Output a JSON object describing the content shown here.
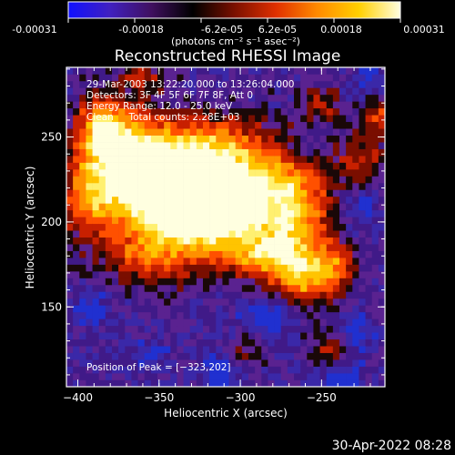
{
  "colorbar": {
    "ticks": [
      "-0.00031",
      "-0.00018",
      "-6.2e-05",
      "6.2e-05",
      "0.00018",
      "0.00031"
    ],
    "unit_label": "(photons cm⁻² s⁻¹ asec⁻²)",
    "colors": [
      "#1010ff",
      "#4020c0",
      "#401060",
      "#000000",
      "#7a1000",
      "#e03000",
      "#ff8a00",
      "#ffd000",
      "#ffffe0"
    ]
  },
  "chart_data": {
    "type": "heatmap",
    "title": "Reconstructed RHESSI Image",
    "xlabel": "Heliocentric X (arcsec)",
    "ylabel": "Heliocentric Y (arcsec)",
    "xlim": [
      -407,
      -211
    ],
    "ylim": [
      103,
      291
    ],
    "x_ticks": [
      -400,
      -350,
      -300,
      -250
    ],
    "y_ticks": [
      150,
      200,
      250
    ],
    "x_tick_labels": [
      "−400",
      "−350",
      "−300",
      "−250"
    ],
    "y_tick_labels": [
      "150",
      "200",
      "250"
    ],
    "peak": [
      -323,
      202
    ],
    "annotations": [
      "29-Mar-2003 13:22:20.000 to 13:26:04.000",
      "Detectors: 3F 4F 5F 6F 7F 8F, Att 0",
      "Energy Range: 12.0 - 25.0 keV",
      "Clean     Total counts: 2.28E+03"
    ],
    "peak_label": "Position of Peak = [−323,202]",
    "sources": [
      {
        "x": -323,
        "y": 205,
        "amp": 1.0,
        "sx": 22,
        "sy": 14
      },
      {
        "x": -340,
        "y": 225,
        "amp": 0.78,
        "sx": 28,
        "sy": 18
      },
      {
        "x": -370,
        "y": 232,
        "amp": 0.8,
        "sx": 20,
        "sy": 22
      },
      {
        "x": -385,
        "y": 255,
        "amp": 0.62,
        "sx": 10,
        "sy": 12
      },
      {
        "x": -300,
        "y": 218,
        "amp": 0.6,
        "sx": 25,
        "sy": 18
      },
      {
        "x": -268,
        "y": 208,
        "amp": 0.58,
        "sx": 15,
        "sy": 24
      },
      {
        "x": -282,
        "y": 180,
        "amp": 0.62,
        "sx": 20,
        "sy": 10
      },
      {
        "x": -258,
        "y": 167,
        "amp": 0.55,
        "sx": 12,
        "sy": 10
      },
      {
        "x": -355,
        "y": 180,
        "amp": 0.45,
        "sx": 20,
        "sy": 12
      },
      {
        "x": -395,
        "y": 212,
        "amp": 0.35,
        "sx": 10,
        "sy": 15
      },
      {
        "x": -318,
        "y": 245,
        "amp": 0.4,
        "sx": 22,
        "sy": 12
      },
      {
        "x": -225,
        "y": 235,
        "amp": 0.35,
        "sx": 10,
        "sy": 12
      },
      {
        "x": -215,
        "y": 263,
        "amp": 0.4,
        "sx": 6,
        "sy": 7
      },
      {
        "x": -250,
        "y": 270,
        "amp": 0.3,
        "sx": 8,
        "sy": 8
      },
      {
        "x": -360,
        "y": 285,
        "amp": 0.3,
        "sx": 10,
        "sy": 6
      },
      {
        "x": -295,
        "y": 125,
        "amp": 0.2,
        "sx": 8,
        "sy": 8
      },
      {
        "x": -245,
        "y": 125,
        "amp": 0.28,
        "sx": 8,
        "sy": 8
      },
      {
        "x": -240,
        "y": 175,
        "amp": 0.35,
        "sx": 8,
        "sy": 10
      }
    ],
    "negatives": [
      {
        "x": -285,
        "y": 145,
        "amp": 0.3,
        "sx": 10,
        "sy": 8
      },
      {
        "x": -312,
        "y": 110,
        "amp": 0.25,
        "sx": 8,
        "sy": 8
      },
      {
        "x": -238,
        "y": 110,
        "amp": 0.3,
        "sx": 8,
        "sy": 6
      },
      {
        "x": -228,
        "y": 135,
        "amp": 0.25,
        "sx": 7,
        "sy": 8
      },
      {
        "x": -390,
        "y": 150,
        "amp": 0.2,
        "sx": 8,
        "sy": 8
      },
      {
        "x": -225,
        "y": 210,
        "amp": 0.22,
        "sx": 7,
        "sy": 8
      },
      {
        "x": -262,
        "y": 240,
        "amp": 0.22,
        "sx": 7,
        "sy": 8
      },
      {
        "x": -356,
        "y": 120,
        "amp": 0.18,
        "sx": 8,
        "sy": 6
      },
      {
        "x": -220,
        "y": 285,
        "amp": 0.2,
        "sx": 6,
        "sy": 6
      }
    ]
  },
  "footer": {
    "timestamp": "30-Apr-2022 08:28"
  }
}
